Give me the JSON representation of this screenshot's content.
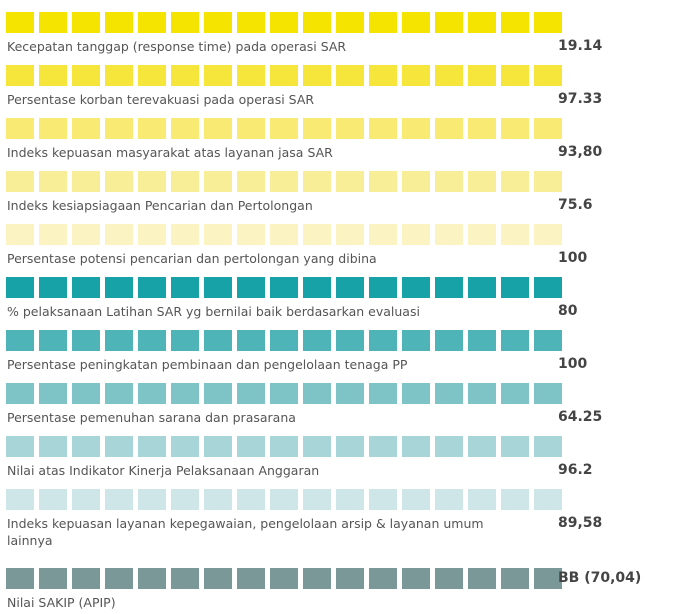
{
  "items": [
    {
      "label": "Kecepatan tanggap (response time) pada operasi SAR",
      "value": "19.14"
    },
    {
      "label": "Persentase korban terevakuasi pada operasi SAR",
      "value": "97.33"
    },
    {
      "label": "Indeks kepuasan masyarakat atas layanan jasa SAR",
      "value": "93,80"
    },
    {
      "label": "Indeks kesiapsiagaan Pencarian dan Pertolongan",
      "value": "75.6"
    },
    {
      "label": "Persentase potensi pencarian dan pertolongan yang dibina",
      "value": "100"
    },
    {
      "label": "% pelaksanaan Latihan SAR yg bernilai baik berdasarkan evaluasi",
      "value": "80"
    },
    {
      "label": "Persentase peningkatan pembinaan dan pengelolaan tenaga PP",
      "value": "100"
    },
    {
      "label": "Persentase pemenuhan sarana dan prasarana",
      "value": "64.25"
    },
    {
      "label": "Nilai atas Indikator Kinerja Pelaksanaan Anggaran",
      "value": "96.2"
    },
    {
      "label": "Indeks kepuasan layanan kepegawaian, pengelolaan arsip & layanan umum lainnya",
      "value": "89,58"
    },
    {
      "label": "Nilai SAKIP (APIP)",
      "value": "BB (70,04)"
    }
  ]
}
